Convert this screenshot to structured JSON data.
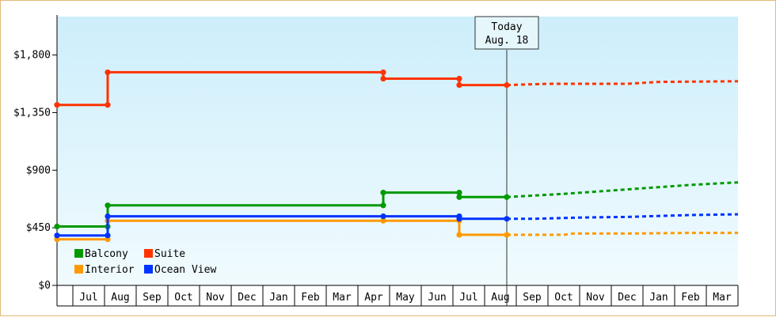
{
  "chart_data": {
    "type": "line",
    "y_ticks": [
      {
        "value": 0,
        "label": "$0"
      },
      {
        "value": 450,
        "label": "$450"
      },
      {
        "value": 900,
        "label": "$900"
      },
      {
        "value": 1350,
        "label": "$1,350"
      },
      {
        "value": 1800,
        "label": "$1,800"
      }
    ],
    "ylim": [
      0,
      2100
    ],
    "x_range": [
      0,
      21.5
    ],
    "x_ticks": [
      "Jul",
      "Aug",
      "Sep",
      "Oct",
      "Nov",
      "Dec",
      "Jan",
      "Feb",
      "Mar",
      "Apr",
      "May",
      "Jun",
      "Jul",
      "Aug",
      "Sep",
      "Oct",
      "Nov",
      "Dec",
      "Jan",
      "Feb",
      "Mar"
    ],
    "today": {
      "x": 14.2,
      "line1": "Today",
      "line2": "Aug. 18"
    },
    "grid": false,
    "legend_position": "bottom-left",
    "series": [
      {
        "name": "Balcony",
        "color": "#009900",
        "history": [
          [
            0,
            460
          ],
          [
            1.6,
            460
          ],
          [
            1.6,
            625
          ],
          [
            10.3,
            625
          ],
          [
            10.3,
            725
          ],
          [
            12.7,
            725
          ],
          [
            12.7,
            690
          ],
          [
            14.2,
            690
          ]
        ],
        "forecast": [
          [
            14.2,
            690
          ],
          [
            16,
            715
          ],
          [
            18,
            750
          ],
          [
            20,
            785
          ],
          [
            21.5,
            805
          ]
        ]
      },
      {
        "name": "Interior",
        "color": "#ff9900",
        "history": [
          [
            0,
            360
          ],
          [
            1.6,
            360
          ],
          [
            1.6,
            505
          ],
          [
            10.3,
            505
          ],
          [
            12.7,
            505
          ],
          [
            12.7,
            395
          ],
          [
            14.2,
            395
          ]
        ],
        "forecast": [
          [
            14.2,
            395
          ],
          [
            16,
            395
          ],
          [
            16.3,
            405
          ],
          [
            18,
            405
          ],
          [
            20,
            410
          ],
          [
            21.5,
            410
          ]
        ]
      },
      {
        "name": "Suite",
        "color": "#ff3300",
        "history": [
          [
            0,
            1410
          ],
          [
            1.6,
            1410
          ],
          [
            1.6,
            1665
          ],
          [
            10.3,
            1665
          ],
          [
            10.3,
            1615
          ],
          [
            12.7,
            1615
          ],
          [
            12.7,
            1565
          ],
          [
            14.2,
            1565
          ]
        ],
        "forecast": [
          [
            14.2,
            1565
          ],
          [
            15.5,
            1575
          ],
          [
            18,
            1575
          ],
          [
            19,
            1590
          ],
          [
            21.5,
            1595
          ]
        ]
      },
      {
        "name": "Ocean View",
        "color": "#0033ff",
        "history": [
          [
            0,
            390
          ],
          [
            1.6,
            390
          ],
          [
            1.6,
            540
          ],
          [
            10.3,
            540
          ],
          [
            12.7,
            540
          ],
          [
            12.7,
            520
          ],
          [
            14.2,
            520
          ]
        ],
        "forecast": [
          [
            14.2,
            520
          ],
          [
            15,
            520
          ],
          [
            16.5,
            530
          ],
          [
            18,
            535
          ],
          [
            20,
            550
          ],
          [
            21.5,
            555
          ]
        ]
      }
    ]
  }
}
